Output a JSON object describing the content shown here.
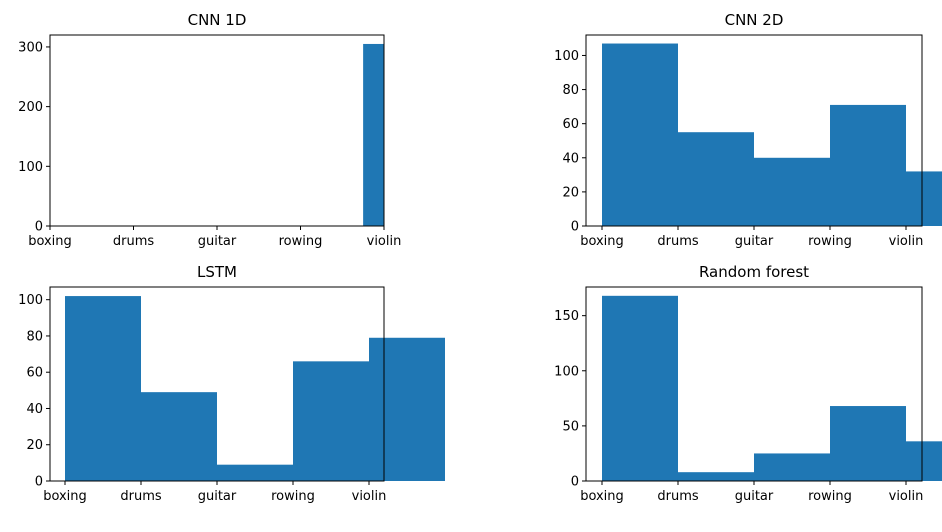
{
  "chart_data": [
    {
      "type": "bar",
      "title": "CNN 1D",
      "categories": [
        "boxing",
        "drums",
        "guitar",
        "rowing",
        "violin"
      ],
      "bins": [
        {
          "x0": 3.75,
          "x1": 4.0,
          "value": 305
        }
      ],
      "ylim": [
        0,
        320
      ],
      "yticks": [
        0,
        100,
        200,
        300
      ],
      "color": "#1f77b4"
    },
    {
      "type": "bar",
      "title": "CNN 2D",
      "categories": [
        "boxing",
        "drums",
        "guitar",
        "rowing",
        "violin"
      ],
      "bins": [
        {
          "x0": 0.0,
          "x1": 1.0,
          "value": 107
        },
        {
          "x0": 1.0,
          "x1": 2.0,
          "value": 55
        },
        {
          "x0": 2.0,
          "x1": 3.0,
          "value": 40
        },
        {
          "x0": 3.0,
          "x1": 4.0,
          "value": 71
        },
        {
          "x0": 4.0,
          "x1": 5.0,
          "value": 32
        }
      ],
      "ylim": [
        0,
        112
      ],
      "yticks": [
        0,
        20,
        40,
        60,
        80,
        100
      ],
      "color": "#1f77b4"
    },
    {
      "type": "bar",
      "title": "LSTM",
      "categories": [
        "boxing",
        "drums",
        "guitar",
        "rowing",
        "violin"
      ],
      "bins": [
        {
          "x0": 0.0,
          "x1": 1.0,
          "value": 102
        },
        {
          "x0": 1.0,
          "x1": 2.0,
          "value": 49
        },
        {
          "x0": 2.0,
          "x1": 3.0,
          "value": 9
        },
        {
          "x0": 3.0,
          "x1": 4.0,
          "value": 66
        },
        {
          "x0": 4.0,
          "x1": 5.0,
          "value": 79
        }
      ],
      "ylim": [
        0,
        107
      ],
      "yticks": [
        0,
        20,
        40,
        60,
        80,
        100
      ],
      "color": "#1f77b4"
    },
    {
      "type": "bar",
      "title": "Random forest",
      "categories": [
        "boxing",
        "drums",
        "guitar",
        "rowing",
        "violin"
      ],
      "bins": [
        {
          "x0": 0.0,
          "x1": 1.0,
          "value": 168
        },
        {
          "x0": 1.0,
          "x1": 2.0,
          "value": 8
        },
        {
          "x0": 2.0,
          "x1": 3.0,
          "value": 25
        },
        {
          "x0": 3.0,
          "x1": 4.0,
          "value": 68
        },
        {
          "x0": 4.0,
          "x1": 5.0,
          "value": 36
        }
      ],
      "ylim": [
        0,
        176
      ],
      "yticks": [
        0,
        50,
        100,
        150
      ],
      "color": "#1f77b4"
    }
  ]
}
